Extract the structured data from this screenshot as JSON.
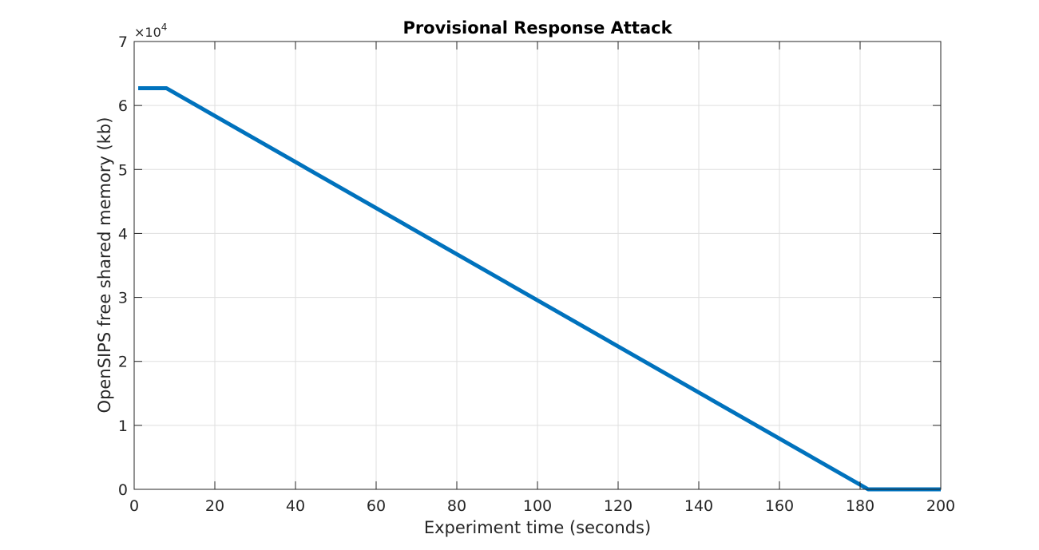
{
  "chart_data": {
    "type": "line",
    "title": "Provisional Response Attack",
    "xlabel": "Experiment time (seconds)",
    "ylabel": "OpenSIPS free shared memory (kb)",
    "xlim": [
      0,
      200
    ],
    "ylim": [
      0,
      70000
    ],
    "x_ticks": [
      0,
      20,
      40,
      60,
      80,
      100,
      120,
      140,
      160,
      180,
      200
    ],
    "x_tick_labels": [
      "0",
      "20",
      "40",
      "60",
      "80",
      "100",
      "120",
      "140",
      "160",
      "180",
      "200"
    ],
    "y_ticks": [
      0,
      10000,
      20000,
      30000,
      40000,
      50000,
      60000,
      70000
    ],
    "y_tick_labels": [
      "0",
      "1",
      "2",
      "3",
      "4",
      "5",
      "6",
      "7"
    ],
    "y_exponent_label": {
      "base": "×10",
      "power": "4"
    },
    "grid": true,
    "series": [
      {
        "color": "#0072bd",
        "x": [
          1,
          8,
          182,
          200
        ],
        "y": [
          62700,
          62700,
          0,
          0
        ]
      }
    ]
  }
}
